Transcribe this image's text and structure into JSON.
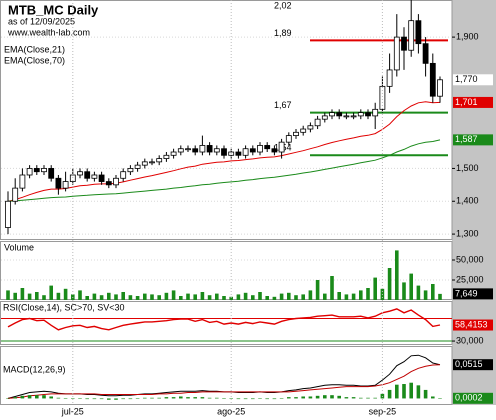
{
  "chart_data": [
    {
      "type": "candlestick",
      "title": "MTB_MC Daily",
      "subtitle": "as of 12/09/2025",
      "source": "www.wealth-lab.com",
      "open": [
        1.32,
        1.4,
        1.44,
        1.48,
        1.5,
        1.49,
        1.5,
        1.47,
        1.44,
        1.46,
        1.48,
        1.49,
        1.47,
        1.48,
        1.46,
        1.45,
        1.47,
        1.49,
        1.5,
        1.51,
        1.52,
        1.52,
        1.53,
        1.54,
        1.55,
        1.56,
        1.56,
        1.55,
        1.57,
        1.55,
        1.56,
        1.54,
        1.55,
        1.54,
        1.56,
        1.55,
        1.57,
        1.56,
        1.55,
        1.58,
        1.6,
        1.61,
        1.62,
        1.63,
        1.65,
        1.66,
        1.67,
        1.66,
        1.66,
        1.66,
        1.67,
        1.66,
        1.68,
        1.75,
        1.8,
        1.9,
        1.86,
        1.95,
        1.88,
        1.82,
        1.72
      ],
      "high": [
        1.43,
        1.47,
        1.5,
        1.51,
        1.51,
        1.51,
        1.51,
        1.48,
        1.49,
        1.5,
        1.5,
        1.5,
        1.49,
        1.49,
        1.47,
        1.48,
        1.5,
        1.51,
        1.52,
        1.53,
        1.53,
        1.54,
        1.55,
        1.56,
        1.57,
        1.57,
        1.57,
        1.6,
        1.58,
        1.57,
        1.57,
        1.56,
        1.56,
        1.57,
        1.57,
        1.58,
        1.58,
        1.57,
        1.59,
        1.61,
        1.62,
        1.63,
        1.64,
        1.66,
        1.67,
        1.68,
        1.68,
        1.67,
        1.67,
        1.68,
        1.68,
        1.7,
        1.78,
        1.85,
        1.97,
        1.93,
        2.02,
        1.97,
        1.9,
        1.85,
        1.78
      ],
      "low": [
        1.3,
        1.39,
        1.43,
        1.47,
        1.48,
        1.48,
        1.46,
        1.42,
        1.43,
        1.45,
        1.47,
        1.46,
        1.46,
        1.45,
        1.44,
        1.44,
        1.46,
        1.48,
        1.49,
        1.5,
        1.51,
        1.51,
        1.52,
        1.53,
        1.54,
        1.55,
        1.54,
        1.54,
        1.54,
        1.54,
        1.53,
        1.53,
        1.53,
        1.53,
        1.54,
        1.54,
        1.55,
        1.54,
        1.53,
        1.57,
        1.59,
        1.6,
        1.61,
        1.62,
        1.64,
        1.65,
        1.65,
        1.65,
        1.65,
        1.65,
        1.65,
        1.62,
        1.67,
        1.73,
        1.78,
        1.8,
        1.84,
        1.85,
        1.78,
        1.7,
        1.7
      ],
      "close": [
        1.4,
        1.44,
        1.48,
        1.5,
        1.49,
        1.5,
        1.47,
        1.44,
        1.46,
        1.48,
        1.49,
        1.47,
        1.48,
        1.46,
        1.45,
        1.47,
        1.49,
        1.5,
        1.51,
        1.52,
        1.52,
        1.53,
        1.54,
        1.55,
        1.56,
        1.56,
        1.55,
        1.57,
        1.55,
        1.56,
        1.54,
        1.55,
        1.54,
        1.56,
        1.55,
        1.57,
        1.56,
        1.55,
        1.58,
        1.6,
        1.61,
        1.62,
        1.63,
        1.65,
        1.66,
        1.67,
        1.66,
        1.66,
        1.66,
        1.67,
        1.66,
        1.68,
        1.75,
        1.8,
        1.9,
        1.86,
        1.95,
        1.88,
        1.82,
        1.72,
        1.77
      ],
      "last_value_label": "1,770",
      "series": [
        {
          "name": "EMA(Close,21)",
          "color": "#e00000",
          "last_value_label": "1,701",
          "values": [
            1.4,
            1.405,
            1.412,
            1.42,
            1.427,
            1.433,
            1.437,
            1.437,
            1.439,
            1.443,
            1.447,
            1.449,
            1.452,
            1.453,
            1.453,
            1.455,
            1.459,
            1.464,
            1.469,
            1.474,
            1.478,
            1.483,
            1.488,
            1.493,
            1.499,
            1.504,
            1.507,
            1.513,
            1.516,
            1.519,
            1.52,
            1.523,
            1.524,
            1.527,
            1.529,
            1.532,
            1.534,
            1.535,
            1.539,
            1.544,
            1.549,
            1.554,
            1.56,
            1.566,
            1.573,
            1.579,
            1.584,
            1.589,
            1.593,
            1.598,
            1.601,
            1.606,
            1.619,
            1.635,
            1.658,
            1.676,
            1.69,
            1.7,
            1.703,
            1.7,
            1.701
          ]
        },
        {
          "name": "EMA(Close,70)",
          "color": "#1a8a1a",
          "last_value_label": "1,587",
          "values": [
            1.4,
            1.401,
            1.403,
            1.405,
            1.407,
            1.409,
            1.411,
            1.412,
            1.413,
            1.415,
            1.417,
            1.418,
            1.42,
            1.421,
            1.422,
            1.423,
            1.425,
            1.427,
            1.429,
            1.431,
            1.433,
            1.435,
            1.437,
            1.44,
            1.442,
            1.445,
            1.447,
            1.45,
            1.452,
            1.455,
            1.457,
            1.459,
            1.461,
            1.464,
            1.466,
            1.469,
            1.471,
            1.473,
            1.476,
            1.479,
            1.482,
            1.486,
            1.489,
            1.493,
            1.497,
            1.501,
            1.505,
            1.509,
            1.513,
            1.517,
            1.521,
            1.525,
            1.532,
            1.54,
            1.55,
            1.558,
            1.568,
            1.575,
            1.58,
            1.582,
            1.587
          ]
        }
      ],
      "levels": [
        {
          "label": "1,89",
          "value": 1.89,
          "color": "#e00000"
        },
        {
          "label": "1,67",
          "value": 1.67,
          "color": "#1a8a1a"
        },
        {
          "label": "1,54",
          "value": 1.54,
          "color": "#1a8a1a"
        }
      ],
      "annotations": [
        {
          "text": "2,02",
          "value": 2.02
        }
      ],
      "ylim": [
        1.282,
        2.013
      ],
      "yticks": [
        {
          "value": 1.3,
          "label": "1,300"
        },
        {
          "value": 1.4,
          "label": "1,400"
        },
        {
          "value": 1.5,
          "label": "1,500"
        },
        {
          "value": 1.9,
          "label": "1,900"
        }
      ]
    },
    {
      "type": "bar",
      "title": "Volume",
      "color": "#1a8a1a",
      "last_value_label": "7,649",
      "values": [
        12000,
        9000,
        15000,
        8000,
        10000,
        6000,
        18000,
        9000,
        14000,
        7000,
        12000,
        5000,
        8000,
        6000,
        9000,
        7000,
        10000,
        6000,
        5000,
        8000,
        7000,
        6000,
        9000,
        12000,
        5000,
        8000,
        7000,
        10000,
        6000,
        8000,
        5000,
        4000,
        7000,
        9000,
        6000,
        10000,
        5000,
        4000,
        8000,
        9000,
        6000,
        7000,
        12000,
        25000,
        8000,
        30000,
        10000,
        7000,
        8000,
        12000,
        15000,
        28000,
        14000,
        40000,
        62000,
        22000,
        33000,
        18000,
        12000,
        20000,
        7649
      ],
      "ylim": [
        0,
        73750
      ],
      "yticks": [
        {
          "value": 25000,
          "label": "25,000"
        },
        {
          "value": 50000,
          "label": "50,000"
        }
      ]
    },
    {
      "type": "line",
      "title": "RSI(Close,14), SC>70, SV<30",
      "color": "#e00000",
      "last_value_label": "58,4153",
      "values": [
        55,
        62,
        68,
        70,
        66,
        67,
        58,
        50,
        54,
        57,
        58,
        54,
        56,
        52,
        50,
        54,
        58,
        60,
        62,
        64,
        64,
        65,
        66,
        68,
        69,
        69,
        65,
        68,
        63,
        65,
        60,
        62,
        60,
        63,
        61,
        64,
        62,
        60,
        65,
        68,
        70,
        71,
        72,
        74,
        75,
        76,
        73,
        73,
        73,
        74,
        71,
        74,
        80,
        83,
        87,
        80,
        85,
        76,
        68,
        56,
        58.4153
      ],
      "levels": [
        {
          "value": 70,
          "color": "#e00000"
        },
        {
          "value": 30,
          "color": "#1a8a1a"
        }
      ],
      "ylim": [
        23,
        101
      ],
      "yticks": [
        {
          "value": 30,
          "label": "30,000"
        }
      ]
    },
    {
      "type": "line",
      "title": "MACD(12,26,9)",
      "categories": [
        null,
        null,
        null,
        null,
        null,
        null,
        null,
        null,
        null,
        "jul-25",
        null,
        null,
        null,
        null,
        null,
        null,
        null,
        null,
        null,
        null,
        null,
        null,
        null,
        null,
        null,
        null,
        null,
        null,
        null,
        null,
        null,
        "ago-25",
        null,
        null,
        null,
        null,
        null,
        null,
        null,
        null,
        null,
        null,
        null,
        null,
        null,
        null,
        null,
        null,
        null,
        null,
        null,
        null,
        "sep-25",
        null,
        null,
        null,
        null,
        null,
        null,
        null,
        null
      ],
      "series": [
        {
          "color": "#000000",
          "last_value_label": "0,0515",
          "values": [
            0,
            0.003,
            0.006,
            0.009,
            0.01,
            0.011,
            0.01,
            0.008,
            0.007,
            0.007,
            0.007,
            0.006,
            0.006,
            0.005,
            0.004,
            0.004,
            0.005,
            0.005,
            0.006,
            0.007,
            0.007,
            0.008,
            0.009,
            0.01,
            0.011,
            0.011,
            0.011,
            0.012,
            0.011,
            0.011,
            0.01,
            0.01,
            0.009,
            0.009,
            0.009,
            0.01,
            0.009,
            0.009,
            0.01,
            0.012,
            0.013,
            0.015,
            0.016,
            0.018,
            0.02,
            0.021,
            0.021,
            0.02,
            0.02,
            0.019,
            0.019,
            0.02,
            0.028,
            0.037,
            0.05,
            0.056,
            0.065,
            0.066,
            0.062,
            0.054,
            0.0515
          ]
        },
        {
          "color": "#c00000",
          "values": [
            0,
            0.001,
            0.002,
            0.004,
            0.005,
            0.006,
            0.007,
            0.007,
            0.007,
            0.007,
            0.007,
            0.007,
            0.007,
            0.006,
            0.006,
            0.006,
            0.006,
            0.006,
            0.006,
            0.006,
            0.006,
            0.007,
            0.007,
            0.008,
            0.008,
            0.009,
            0.009,
            0.01,
            0.01,
            0.01,
            0.01,
            0.01,
            0.01,
            0.01,
            0.01,
            0.01,
            0.01,
            0.01,
            0.01,
            0.01,
            0.011,
            0.012,
            0.013,
            0.014,
            0.015,
            0.016,
            0.017,
            0.018,
            0.018,
            0.018,
            0.018,
            0.019,
            0.021,
            0.024,
            0.029,
            0.034,
            0.041,
            0.046,
            0.049,
            0.051,
            0.0513
          ]
        },
        {
          "type": "bar",
          "color": "#1a8a1a",
          "last_value_label": "0,0002",
          "values": [
            0,
            0.002,
            0.004,
            0.005,
            0.005,
            0.005,
            0.003,
            0.001,
            0,
            0,
            0,
            -0.001,
            -0.001,
            -0.001,
            -0.002,
            -0.002,
            -0.001,
            -0.001,
            0,
            0.001,
            0.001,
            0.001,
            0.002,
            0.002,
            0.003,
            0.002,
            0.002,
            0.002,
            0.001,
            0.001,
            0,
            0,
            -0.001,
            -0.001,
            -0.001,
            0,
            -0.001,
            -0.001,
            0,
            0.002,
            0.002,
            0.003,
            0.003,
            0.004,
            0.005,
            0.005,
            0.004,
            0.002,
            0.002,
            0.001,
            0.001,
            0.001,
            0.007,
            0.013,
            0.021,
            0.022,
            0.024,
            0.02,
            0.013,
            0.003,
            0.0002
          ]
        }
      ],
      "ylim": [
        -0.01,
        0.08
      ]
    }
  ]
}
